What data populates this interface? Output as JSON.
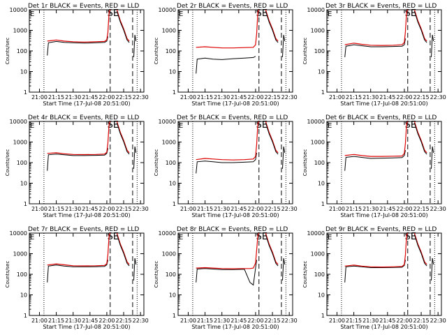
{
  "chart_data": {
    "type": "line",
    "layout": "3x3 grid of small-multiple panels",
    "y_scale": "log",
    "ylim": [
      1,
      10000
    ],
    "y_ticks": [
      "1",
      "10",
      "100",
      "1000",
      "10000"
    ],
    "ylabel": "Counts/sec",
    "x_ticks": [
      "21:00",
      "21:15",
      "21:30",
      "21:45",
      "22:00",
      "22:15",
      "22:30"
    ],
    "xlabel": "Start Time (17-Jul-08 20:51:00)",
    "legend": "in title",
    "markers": [
      {
        "time": "21:04",
        "style": "dotted"
      },
      {
        "time": "22:03",
        "style": "dashed"
      },
      {
        "time": "22:23",
        "style": "dashed"
      },
      {
        "time": "22:27",
        "style": "dotted"
      }
    ],
    "panels": [
      {
        "title": "Det 1r BLACK = Events, RED = LLD",
        "corner_left": "E",
        "corner_right": "SE",
        "series": [
          {
            "color": "#000000",
            "points": [
              [
                "21:07",
                60
              ],
              [
                "21:08",
                250
              ],
              [
                "21:15",
                290
              ],
              [
                "21:22",
                260
              ],
              [
                "21:30",
                250
              ],
              [
                "21:40",
                240
              ],
              [
                "21:50",
                250
              ],
              [
                "21:58",
                260
              ],
              [
                "22:00",
                300
              ],
              [
                "22:01",
                500
              ]
            ]
          },
          {
            "color": "#dd0000",
            "points": [
              [
                "21:07",
                300
              ],
              [
                "21:15",
                340
              ],
              [
                "21:22",
                300
              ],
              [
                "21:30",
                280
              ],
              [
                "21:40",
                270
              ],
              [
                "21:50",
                280
              ],
              [
                "21:58",
                290
              ],
              [
                "22:00",
                350
              ],
              [
                "22:01",
                800
              ],
              [
                "22:02",
                8000
              ],
              [
                "22:03",
                10000
              ]
            ]
          }
        ]
      },
      {
        "title": "Det 2r BLACK = Events, RED = LLD",
        "corner_left": "E",
        "corner_right": "SE",
        "series": [
          {
            "color": "#000000",
            "points": [
              [
                "21:07",
                8
              ],
              [
                "21:08",
                40
              ],
              [
                "21:15",
                45
              ],
              [
                "21:22",
                40
              ],
              [
                "21:30",
                38
              ],
              [
                "21:40",
                42
              ],
              [
                "21:50",
                45
              ],
              [
                "21:58",
                48
              ],
              [
                "22:00",
                55
              ]
            ]
          },
          {
            "color": "#dd0000",
            "points": [
              [
                "21:07",
                150
              ],
              [
                "21:15",
                160
              ],
              [
                "21:22",
                150
              ],
              [
                "21:30",
                140
              ],
              [
                "21:40",
                140
              ],
              [
                "21:50",
                145
              ],
              [
                "21:58",
                150
              ],
              [
                "22:00",
                200
              ],
              [
                "22:01",
                700
              ],
              [
                "22:02",
                8000
              ],
              [
                "22:03",
                10000
              ]
            ]
          }
        ]
      },
      {
        "title": "Det 3r BLACK = Events, RED = LLD",
        "corner_left": "E",
        "corner_right": "SE",
        "series": [
          {
            "color": "#000000",
            "points": [
              [
                "21:07",
                50
              ],
              [
                "21:08",
                170
              ],
              [
                "21:15",
                200
              ],
              [
                "21:22",
                180
              ],
              [
                "21:30",
                160
              ],
              [
                "21:40",
                160
              ],
              [
                "21:50",
                165
              ],
              [
                "21:58",
                170
              ],
              [
                "22:00",
                200
              ],
              [
                "22:01",
                400
              ]
            ]
          },
          {
            "color": "#dd0000",
            "points": [
              [
                "21:07",
                200
              ],
              [
                "21:15",
                240
              ],
              [
                "21:22",
                210
              ],
              [
                "21:30",
                190
              ],
              [
                "21:40",
                185
              ],
              [
                "21:50",
                190
              ],
              [
                "21:58",
                200
              ],
              [
                "22:00",
                260
              ],
              [
                "22:01",
                900
              ],
              [
                "22:02",
                8000
              ],
              [
                "22:03",
                10000
              ]
            ]
          }
        ]
      },
      {
        "title": "Det 4r BLACK = Events, RED = LLD",
        "corner_left": "E",
        "corner_right": "SE",
        "series": [
          {
            "color": "#000000",
            "points": [
              [
                "21:07",
                40
              ],
              [
                "21:08",
                240
              ],
              [
                "21:15",
                260
              ],
              [
                "21:22",
                240
              ],
              [
                "21:30",
                220
              ],
              [
                "21:40",
                220
              ],
              [
                "21:50",
                225
              ],
              [
                "21:58",
                230
              ],
              [
                "22:00",
                280
              ],
              [
                "22:01",
                500
              ]
            ]
          },
          {
            "color": "#dd0000",
            "points": [
              [
                "21:07",
                280
              ],
              [
                "21:15",
                300
              ],
              [
                "21:22",
                270
              ],
              [
                "21:30",
                250
              ],
              [
                "21:40",
                245
              ],
              [
                "21:50",
                250
              ],
              [
                "21:58",
                260
              ],
              [
                "22:00",
                320
              ],
              [
                "22:01",
                900
              ],
              [
                "22:02",
                8000
              ],
              [
                "22:03",
                10000
              ]
            ]
          }
        ]
      },
      {
        "title": "Det 5r BLACK = Events, RED = LLD",
        "corner_left": "E",
        "corner_right": "SE",
        "series": [
          {
            "color": "#000000",
            "points": [
              [
                "21:07",
                30
              ],
              [
                "21:08",
                110
              ],
              [
                "21:15",
                120
              ],
              [
                "21:22",
                110
              ],
              [
                "21:30",
                100
              ],
              [
                "21:40",
                100
              ],
              [
                "21:50",
                105
              ],
              [
                "21:58",
                110
              ],
              [
                "22:00",
                140
              ],
              [
                "22:01",
                300
              ]
            ]
          },
          {
            "color": "#dd0000",
            "points": [
              [
                "21:07",
                140
              ],
              [
                "21:15",
                160
              ],
              [
                "21:22",
                150
              ],
              [
                "21:30",
                140
              ],
              [
                "21:40",
                135
              ],
              [
                "21:50",
                140
              ],
              [
                "21:58",
                150
              ],
              [
                "22:00",
                200
              ],
              [
                "22:01",
                800
              ],
              [
                "22:02",
                8000
              ],
              [
                "22:03",
                10000
              ]
            ]
          }
        ]
      },
      {
        "title": "Det 6r BLACK = Events, RED = LLD",
        "corner_left": "E",
        "corner_right": "SE",
        "series": [
          {
            "color": "#000000",
            "points": [
              [
                "21:07",
                40
              ],
              [
                "21:08",
                180
              ],
              [
                "21:15",
                200
              ],
              [
                "21:22",
                180
              ],
              [
                "21:30",
                160
              ],
              [
                "21:40",
                165
              ],
              [
                "21:50",
                170
              ],
              [
                "21:58",
                175
              ],
              [
                "22:00",
                220
              ],
              [
                "22:01",
                400
              ]
            ]
          },
          {
            "color": "#dd0000",
            "points": [
              [
                "21:07",
                220
              ],
              [
                "21:15",
                250
              ],
              [
                "21:22",
                220
              ],
              [
                "21:30",
                200
              ],
              [
                "21:40",
                200
              ],
              [
                "21:50",
                205
              ],
              [
                "21:58",
                210
              ],
              [
                "22:00",
                280
              ],
              [
                "22:01",
                900
              ],
              [
                "22:02",
                8000
              ],
              [
                "22:03",
                10000
              ]
            ]
          }
        ]
      },
      {
        "title": "Det 7r BLACK = Events, RED = LLD",
        "corner_left": "E",
        "corner_right": "SE",
        "series": [
          {
            "color": "#000000",
            "points": [
              [
                "21:07",
                40
              ],
              [
                "21:08",
                250
              ],
              [
                "21:15",
                280
              ],
              [
                "21:22",
                250
              ],
              [
                "21:30",
                230
              ],
              [
                "21:40",
                230
              ],
              [
                "21:50",
                235
              ],
              [
                "21:58",
                240
              ],
              [
                "22:00",
                290
              ],
              [
                "22:01",
                500
              ]
            ]
          },
          {
            "color": "#dd0000",
            "points": [
              [
                "21:07",
                280
              ],
              [
                "21:15",
                320
              ],
              [
                "21:22",
                290
              ],
              [
                "21:30",
                260
              ],
              [
                "21:40",
                255
              ],
              [
                "21:50",
                260
              ],
              [
                "21:58",
                270
              ],
              [
                "22:00",
                330
              ],
              [
                "22:01",
                900
              ],
              [
                "22:02",
                8000
              ],
              [
                "22:03",
                10000
              ]
            ]
          }
        ]
      },
      {
        "title": "Det 8r BLACK = Events, RED = LLD",
        "corner_left": "E",
        "corner_right": "SE",
        "series": [
          {
            "color": "#000000",
            "points": [
              [
                "21:07",
                40
              ],
              [
                "21:08",
                180
              ],
              [
                "21:15",
                190
              ],
              [
                "21:22",
                180
              ],
              [
                "21:30",
                170
              ],
              [
                "21:40",
                170
              ],
              [
                "21:50",
                175
              ],
              [
                "21:55",
                40
              ],
              [
                "21:58",
                30
              ],
              [
                "22:00",
                200
              ],
              [
                "22:01",
                500
              ]
            ]
          },
          {
            "color": "#dd0000",
            "points": [
              [
                "21:07",
                200
              ],
              [
                "21:15",
                210
              ],
              [
                "21:22",
                200
              ],
              [
                "21:30",
                190
              ],
              [
                "21:40",
                185
              ],
              [
                "21:50",
                190
              ],
              [
                "21:55",
                190
              ],
              [
                "21:58",
                200
              ],
              [
                "22:00",
                350
              ],
              [
                "22:01",
                1500
              ],
              [
                "22:02",
                8000
              ],
              [
                "22:03",
                10000
              ]
            ]
          }
        ]
      },
      {
        "title": "Det 9r BLACK = Events, RED = LLD",
        "corner_left": "E",
        "corner_right": "SE",
        "series": [
          {
            "color": "#000000",
            "points": [
              [
                "21:07",
                40
              ],
              [
                "21:08",
                230
              ],
              [
                "21:15",
                250
              ],
              [
                "21:22",
                230
              ],
              [
                "21:30",
                210
              ],
              [
                "21:40",
                210
              ],
              [
                "21:50",
                215
              ],
              [
                "21:58",
                220
              ],
              [
                "22:00",
                270
              ],
              [
                "22:01",
                500
              ]
            ]
          },
          {
            "color": "#dd0000",
            "points": [
              [
                "21:07",
                250
              ],
              [
                "21:15",
                280
              ],
              [
                "21:22",
                250
              ],
              [
                "21:30",
                230
              ],
              [
                "21:40",
                225
              ],
              [
                "21:50",
                230
              ],
              [
                "21:58",
                240
              ],
              [
                "22:00",
                300
              ],
              [
                "22:01",
                900
              ],
              [
                "22:02",
                8000
              ],
              [
                "22:03",
                10000
              ]
            ]
          }
        ]
      }
    ],
    "decay_points": [
      [
        "22:09",
        10000
      ],
      [
        "22:12",
        3000
      ],
      [
        "22:15",
        1200
      ],
      [
        "22:18",
        400
      ],
      [
        "22:20",
        300
      ]
    ],
    "tail_points": [
      [
        "22:24",
        50
      ],
      [
        "22:25",
        600
      ],
      [
        "22:26",
        300
      ]
    ]
  }
}
